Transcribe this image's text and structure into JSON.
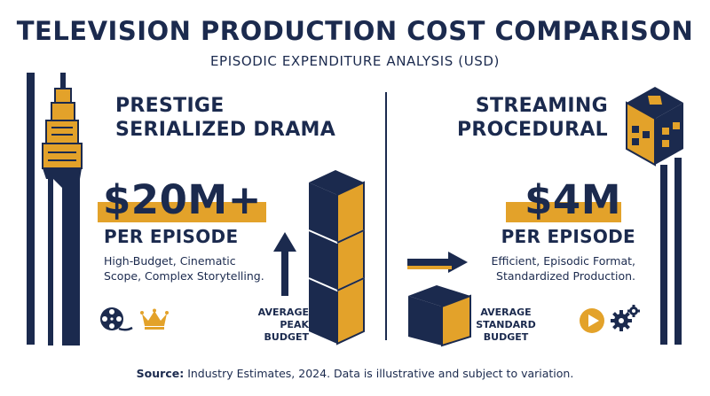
{
  "title": "TELEVISION PRODUCTION COST COMPARISON",
  "subtitle": "EPISODIC EXPENDITURE ANALYSIS (USD)",
  "left": {
    "heading_line1": "PRESTIGE",
    "heading_line2": "SERIALIZED DRAMA",
    "amount": "$20M+",
    "per": "PER EPISODE",
    "desc_line1": "High-Budget, Cinematic",
    "desc_line2": "Scope, Complex Storytelling.",
    "tag_line1": "AVERAGE",
    "tag_line2": "PEAK",
    "tag_line3": "BUDGET",
    "icons": [
      "film-reel-icon",
      "crown-icon"
    ]
  },
  "right": {
    "heading_line1": "STREAMING",
    "heading_line2": "PROCEDURAL",
    "amount": "$4M",
    "per": "PER EPISODE",
    "desc_line1": "Efficient, Episodic Format,",
    "desc_line2": "Standardized Production.",
    "tag_line1": "AVERAGE",
    "tag_line2": "STANDARD",
    "tag_line3": "BUDGET",
    "icons": [
      "play-button-icon",
      "gears-icon"
    ]
  },
  "source": {
    "label": "Source:",
    "text": " Industry Estimates, 2024. Data is illustrative and subject to variation."
  },
  "colors": {
    "navy": "#1b2a4e",
    "gold": "#e3a22a",
    "background": "#ffffff"
  }
}
